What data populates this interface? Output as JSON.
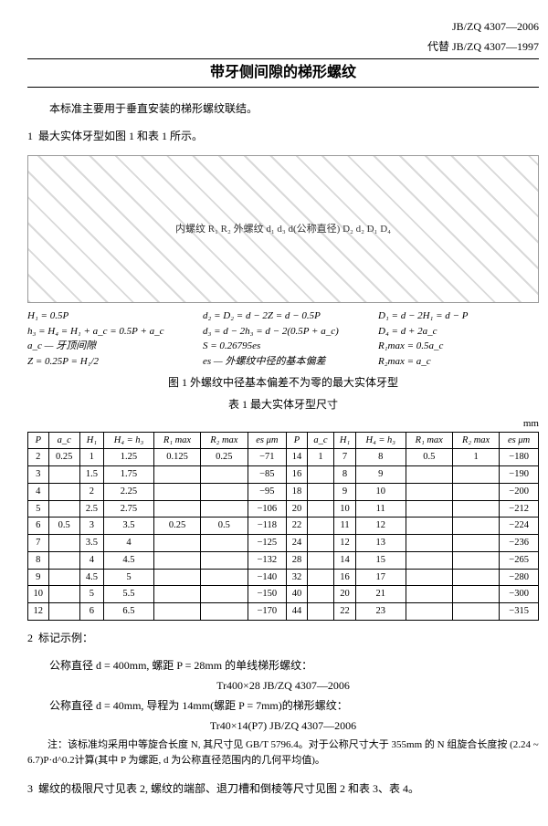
{
  "header": {
    "code": "JB/ZQ 4307—2006",
    "replaces": "代替 JB/ZQ 4307—1997"
  },
  "title": "带牙侧间隙的梯形螺纹",
  "intro": "本标准主要用于垂直安装的梯形螺纹联结。",
  "section1": "最大实体牙型如图 1 和表 1 所示。",
  "diagram_top_labels": "内螺纹  R₁  R₂  外螺纹  d₁ d₃ d(公称直径) D₂ d₂ D₁ D₄",
  "formulas": {
    "col1": "H₁ = 0.5P\nh₃ = H₄ = H₁ + a_c = 0.5P + a_c\na_c — 牙顶间隙\nZ = 0.25P = H₁/2",
    "col2": "d₂ = D₂ = d − 2Z = d − 0.5P\nd₃ = d − 2h₃ = d − 2(0.5P + a_c)\nS = 0.26795es\nes — 外螺纹中径的基本偏差",
    "col3": "D₁ = d − 2H₁ = d − P\nD₄ = d + 2a_c\nR₁max = 0.5a_c\nR₂max = a_c"
  },
  "fig1_caption": "图 1  外螺纹中径基本偏差不为零的最大实体牙型",
  "tab1_caption": "表 1  最大实体牙型尺寸",
  "tab1_unit": "mm",
  "table1": {
    "columns_left": [
      "P",
      "a_c",
      "H₁",
      "H₄ = h₃",
      "R₁ max",
      "R₂ max",
      "es μm"
    ],
    "columns_right": [
      "P",
      "a_c",
      "H₁",
      "H₄ = h₃",
      "R₁ max",
      "R₂ max",
      "es μm"
    ],
    "rows_left": [
      [
        "2",
        "0.25",
        "1",
        "1.25",
        "0.125",
        "0.25",
        "−71"
      ],
      [
        "3",
        "",
        "1.5",
        "1.75",
        "",
        "",
        "−85"
      ],
      [
        "4",
        "",
        "2",
        "2.25",
        "",
        "",
        "−95"
      ],
      [
        "5",
        "",
        "2.5",
        "2.75",
        "",
        "",
        "−106"
      ],
      [
        "6",
        "0.5",
        "3",
        "3.5",
        "0.25",
        "0.5",
        "−118"
      ],
      [
        "7",
        "",
        "3.5",
        "4",
        "",
        "",
        "−125"
      ],
      [
        "8",
        "",
        "4",
        "4.5",
        "",
        "",
        "−132"
      ],
      [
        "9",
        "",
        "4.5",
        "5",
        "",
        "",
        "−140"
      ],
      [
        "10",
        "",
        "5",
        "5.5",
        "",
        "",
        "−150"
      ],
      [
        "12",
        "",
        "6",
        "6.5",
        "",
        "",
        "−170"
      ]
    ],
    "rows_right": [
      [
        "14",
        "1",
        "7",
        "8",
        "0.5",
        "1",
        "−180"
      ],
      [
        "16",
        "",
        "8",
        "9",
        "",
        "",
        "−190"
      ],
      [
        "18",
        "",
        "9",
        "10",
        "",
        "",
        "−200"
      ],
      [
        "20",
        "",
        "10",
        "11",
        "",
        "",
        "−212"
      ],
      [
        "22",
        "",
        "11",
        "12",
        "",
        "",
        "−224"
      ],
      [
        "24",
        "",
        "12",
        "13",
        "",
        "",
        "−236"
      ],
      [
        "28",
        "",
        "14",
        "15",
        "",
        "",
        "−265"
      ],
      [
        "32",
        "",
        "16",
        "17",
        "",
        "",
        "−280"
      ],
      [
        "40",
        "",
        "20",
        "21",
        "",
        "",
        "−300"
      ],
      [
        "44",
        "",
        "22",
        "23",
        "",
        "",
        "−315"
      ]
    ]
  },
  "section2_title": "标记示例：",
  "example1_label": "公称直径 d = 400mm, 螺距 P = 28mm 的单线梯形螺纹：",
  "example1_mark": "Tr400×28    JB/ZQ 4307—2006",
  "example2_label": "公称直径 d = 40mm, 导程为 14mm(螺距 P = 7mm)的梯形螺纹：",
  "example2_mark": "Tr40×14(P7)    JB/ZQ 4307—2006",
  "note_text": "注：该标准均采用中等旋合长度 N, 其尺寸见 GB/T 5796.4。对于公称尺寸大于 355mm 的 N 组旋合长度按 (2.24 ~ 6.7)P·d^0.2计算(其中 P 为螺距, d 为公称直径范围内的几何平均值)。",
  "section3": "螺纹的极限尺寸见表 2, 螺纹的端部、退刀槽和倒棱等尺寸见图 2 和表 3、表 4。"
}
